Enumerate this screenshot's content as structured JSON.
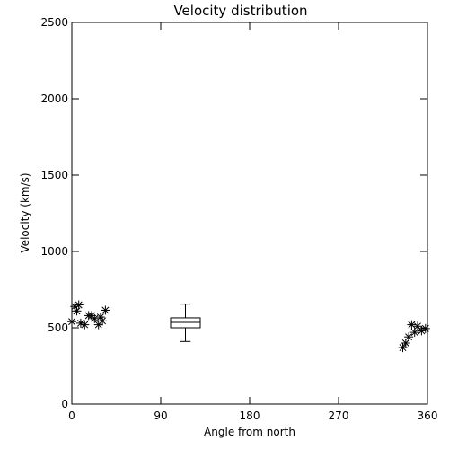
{
  "chart_data": {
    "type": "scatter",
    "title": "Velocity distribution",
    "xlabel": "Angle from north",
    "ylabel": "Velocity (km/s)",
    "xlim": [
      0,
      360
    ],
    "ylim": [
      0,
      2500
    ],
    "xticks": [
      0,
      90,
      180,
      270,
      360
    ],
    "yticks": [
      0,
      500,
      1000,
      1500,
      2000,
      2500
    ],
    "grid": false,
    "marker": "asterisk",
    "series": [
      {
        "points": [
          {
            "x": 0,
            "y": 540
          },
          {
            "x": 3,
            "y": 640
          },
          {
            "x": 5,
            "y": 610
          },
          {
            "x": 7,
            "y": 650
          },
          {
            "x": 9,
            "y": 530
          },
          {
            "x": 13,
            "y": 520
          },
          {
            "x": 17,
            "y": 580
          },
          {
            "x": 20,
            "y": 580
          },
          {
            "x": 23,
            "y": 560
          },
          {
            "x": 27,
            "y": 520
          },
          {
            "x": 29,
            "y": 570
          },
          {
            "x": 31,
            "y": 545
          },
          {
            "x": 34,
            "y": 615
          },
          {
            "x": 335,
            "y": 370
          },
          {
            "x": 338,
            "y": 400
          },
          {
            "x": 341,
            "y": 440
          },
          {
            "x": 344,
            "y": 520
          },
          {
            "x": 347,
            "y": 470
          },
          {
            "x": 350,
            "y": 510
          },
          {
            "x": 354,
            "y": 480
          },
          {
            "x": 358,
            "y": 495
          }
        ]
      }
    ],
    "boxplot": {
      "x": 115,
      "min": 410,
      "q1": 500,
      "median": 535,
      "q3": 565,
      "max": 655,
      "width_deg": 30
    }
  }
}
